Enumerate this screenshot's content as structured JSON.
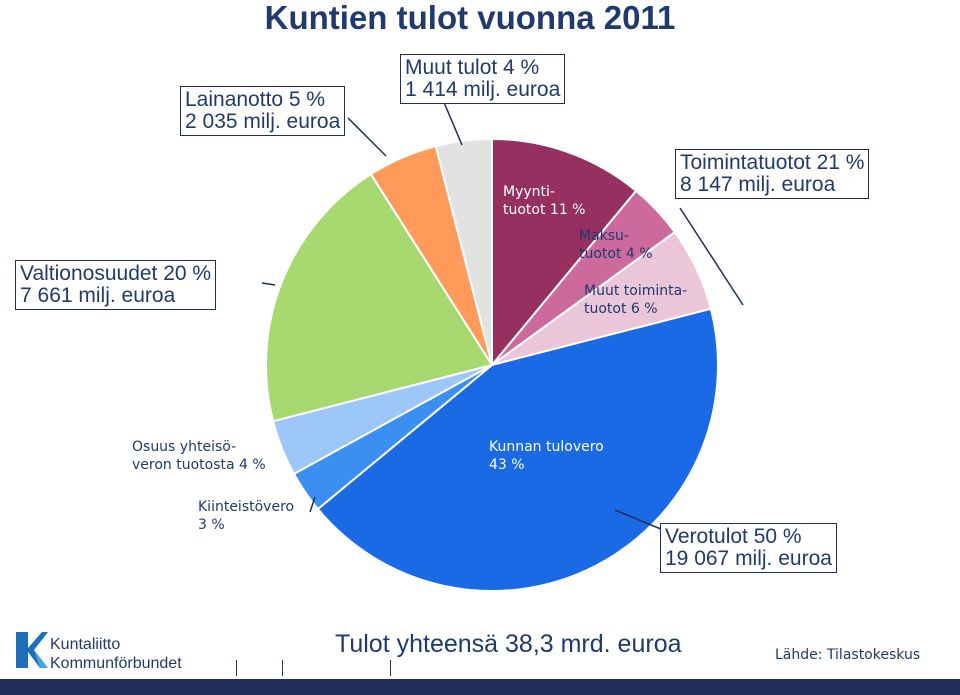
{
  "chart_data": {
    "type": "pie",
    "title": "Kuntien  tulot vuonna 2011",
    "slices": [
      {
        "key": "myynti",
        "label": "Myynti-\ntuotot 11 %",
        "value": 11,
        "color": "#953060"
      },
      {
        "key": "maksu",
        "label": "Maksu-\ntuotot 4 %",
        "value": 4,
        "color": "#cc6a9e"
      },
      {
        "key": "muut_toim",
        "label": "Muut toiminta-\ntuotot 6 %",
        "value": 6,
        "color": "#eac6d8"
      },
      {
        "key": "tulovero",
        "label": "Kunnan tulovero\n43 %",
        "value": 43,
        "color": "#1a6ae6"
      },
      {
        "key": "kiinteisto",
        "label": "Kiinteistövero\n3 %",
        "value": 3,
        "color": "#3c8ff2"
      },
      {
        "key": "yhteiso",
        "label": "Osuus yhteisö-\nveron tuotosta 4 %",
        "value": 4,
        "color": "#9cc7f8"
      },
      {
        "key": "valtio",
        "label": "",
        "value": 20,
        "color": "#a8d870"
      },
      {
        "key": "laina",
        "label": "",
        "value": 5,
        "color": "#ff9a5a"
      },
      {
        "key": "muut",
        "label": "",
        "value": 4,
        "color": "#e2e2e2"
      }
    ],
    "groups": {
      "toimintatuotot": "Toimintatuotot 21 %\n8 147 milj. euroa",
      "verotulot": "Verotulot 50 %\n19 067 milj. euroa",
      "valtionosuudet": "Valtionosuudet 20 %\n7 661 milj. euroa",
      "lainanotto": "Lainanotto 5 %\n2 035 milj. euroa",
      "muut_tulot": "Muut tulot 4 %\n1 414 milj. euroa"
    }
  },
  "footer": {
    "total": "Tulot yhteensä 38,3 mrd. euroa",
    "source": "Lähde: Tilastokeskus",
    "logo_line1": "Kuntaliitto",
    "logo_line2": "Kommunförbundet"
  }
}
